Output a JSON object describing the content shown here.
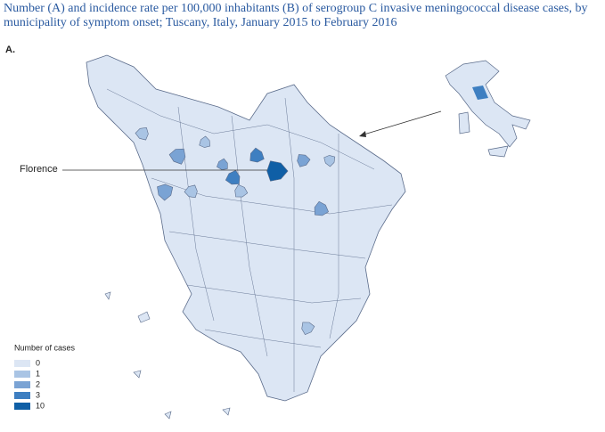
{
  "title": "Number (A) and incidence rate per 100,000 inhabitants (B) of serogroup C invasive meningococcal disease cases, by municipality of symptom onset; Tuscany, Italy, January 2015 to February 2016",
  "panel": "A.",
  "annotation": "Florence",
  "legend": {
    "title": "Number of cases",
    "items": [
      {
        "value": 0,
        "color": "#dce6f4"
      },
      {
        "value": 1,
        "color": "#a9c4e4"
      },
      {
        "value": 2,
        "color": "#7aa3d4"
      },
      {
        "value": 3,
        "color": "#3e7fc1"
      },
      {
        "value": 10,
        "color": "#0f5fa6"
      }
    ]
  },
  "cases": [
    10,
    3,
    3,
    2,
    2,
    2,
    2,
    2,
    1,
    1,
    1,
    1,
    1,
    1
  ]
}
